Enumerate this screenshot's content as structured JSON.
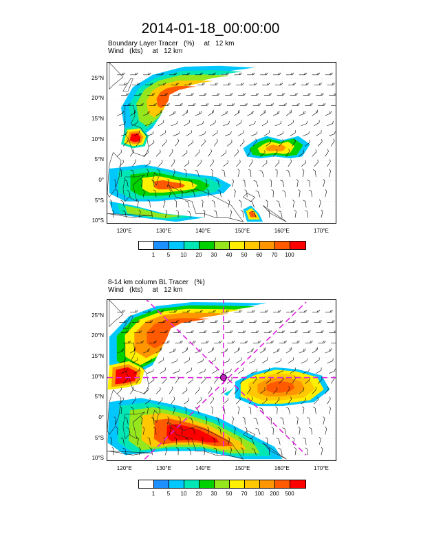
{
  "title": "2014-01-18_00:00:00",
  "panels": [
    {
      "subtitle_line1": "Boundary Layer Tracer   (%)     at   12 km",
      "subtitle_line2": "Wind   (kts)     at   12 km",
      "lat_labels": [
        "25°N",
        "20°N",
        "15°N",
        "10°N",
        "5°N",
        "0°",
        "5°S",
        "10°S"
      ],
      "lon_labels": [
        "120°E",
        "130°E",
        "140°E",
        "150°E",
        "160°E",
        "170°E"
      ],
      "colorbar_labels": [
        "1",
        "5",
        "10",
        "20",
        "30",
        "40",
        "50",
        "60",
        "70",
        "100"
      ]
    },
    {
      "subtitle_line1": "8-14 km column BL Tracer   (%)",
      "subtitle_line2": "Wind   (kts)     at   12 km",
      "lat_labels": [
        "25°N",
        "20°N",
        "15°N",
        "10°N",
        "5°N",
        "0°",
        "5°S",
        "10°S"
      ],
      "lon_labels": [
        "120°E",
        "130°E",
        "140°E",
        "150°E",
        "160°E",
        "170°E"
      ],
      "colorbar_labels": [
        "1",
        "5",
        "10",
        "20",
        "30",
        "50",
        "70",
        "100",
        "200",
        "500"
      ]
    }
  ],
  "colorbar_colors": [
    "#ffffff",
    "#1e90ff",
    "#00c8ff",
    "#00e6b4",
    "#00d200",
    "#96e61e",
    "#fff000",
    "#ffc800",
    "#ff9600",
    "#ff5a00",
    "#ff0000"
  ],
  "map_extent": {
    "lon_min": 115.5,
    "lon_max": 173.5,
    "lat_min": -10.3,
    "lat_max": 29.0
  }
}
